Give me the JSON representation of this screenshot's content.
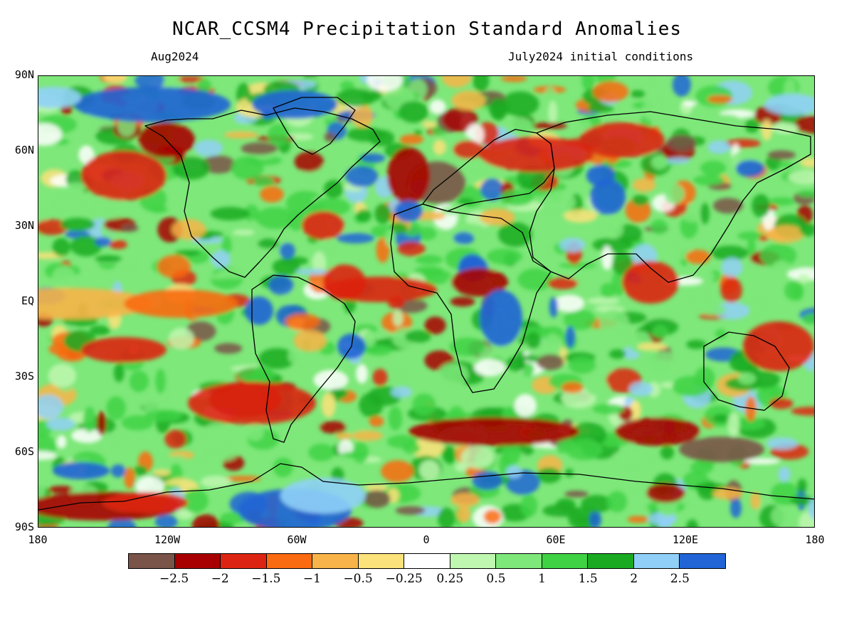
{
  "title": "NCAR_CCSM4 Precipitation Standard Anomalies",
  "subtitle_left": "Aug2024",
  "subtitle_right": "July2024 initial conditions",
  "lat_labels": [
    "90N",
    "60N",
    "30N",
    "EQ",
    "30S",
    "60S",
    "90S"
  ],
  "lon_labels": [
    "180",
    "120W",
    "60W",
    "0",
    "60E",
    "120E",
    "180"
  ],
  "colorbar": {
    "colors": [
      "#7a5448",
      "#a80000",
      "#dd2412",
      "#fa6a10",
      "#f8b448",
      "#fbe27a",
      "#ffffff",
      "#bff7b0",
      "#7ee87a",
      "#3ed244",
      "#1aaa22",
      "#90d0f8",
      "#2064d6"
    ],
    "labels": [
      "-2.5",
      "-2",
      "-1.5",
      "-1",
      "-0.5",
      "-0.25",
      "0.25",
      "0.5",
      "1",
      "1.5",
      "2",
      "2.5"
    ]
  },
  "map_data": {
    "colors": {
      "land_outline": "#000000",
      "dry_extreme": "#7a5448",
      "dry_strong": "#a80000",
      "dry": "#dd2412",
      "dry_moderate": "#fa6a10",
      "dry_weak": "#f8b448",
      "dry_slight": "#fbe27a",
      "neutral": "#ffffff",
      "wet_slight": "#bff7b0",
      "wet_weak": "#7ee87a",
      "wet_moderate": "#3ed244",
      "wet_strong": "#1aaa22",
      "wet_very": "#90d0f8",
      "wet_extreme": "#2064d6"
    }
  }
}
